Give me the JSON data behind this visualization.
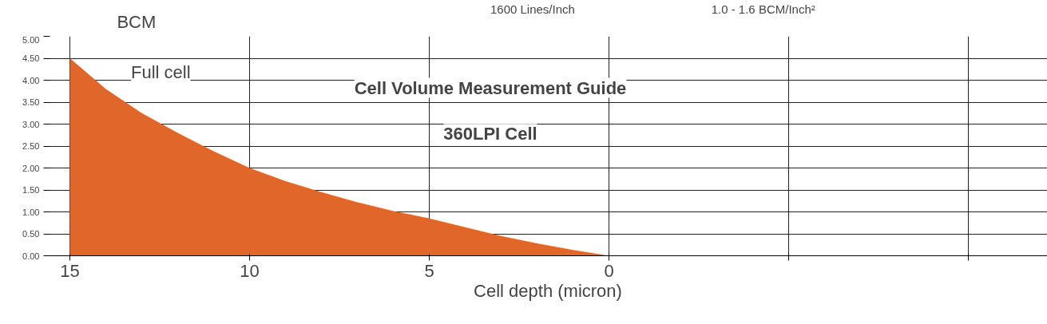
{
  "chart_data": {
    "type": "area",
    "title": "Cell Volume Measurement Guide",
    "subtitle": "360LPI Cell",
    "xlabel": "Cell depth (micron)",
    "ylabel": "BCM",
    "annotations": [
      "Full cell",
      "1600  Lines/Inch",
      "1.0 - 1.6  BCM/Inch²"
    ],
    "x": [
      15,
      14,
      13,
      12,
      11,
      10,
      9,
      8,
      7,
      6,
      5,
      4,
      3,
      2,
      1,
      0
    ],
    "values": [
      4.5,
      3.8,
      3.25,
      2.8,
      2.38,
      2.0,
      1.7,
      1.45,
      1.22,
      1.02,
      0.85,
      0.65,
      0.45,
      0.28,
      0.13,
      0
    ],
    "color": "#e0662a",
    "xlim": [
      15.6,
      -12.2
    ],
    "ylim": [
      0,
      5
    ],
    "xticks": [
      15,
      10,
      5,
      0,
      {
        "value": -5,
        "label": null
      },
      {
        "value": -10,
        "label": null
      }
    ],
    "yticks": [
      {
        "value": 0,
        "label": "0.00"
      },
      {
        "value": 0.5,
        "label": "0.50"
      },
      {
        "value": 1,
        "label": "1.00"
      },
      {
        "value": 1.5,
        "label": "1.50"
      },
      {
        "value": 2,
        "label": "2.00"
      },
      {
        "value": 2.5,
        "label": "2.50"
      },
      {
        "value": 3,
        "label": "3.00"
      },
      {
        "value": 3.5,
        "label": "3.50"
      },
      {
        "value": 4,
        "label": "4.00"
      },
      {
        "value": 4.5,
        "label": "4.50"
      },
      {
        "value": 5,
        "label": "5.00"
      }
    ],
    "grid": true,
    "marker": "none"
  }
}
